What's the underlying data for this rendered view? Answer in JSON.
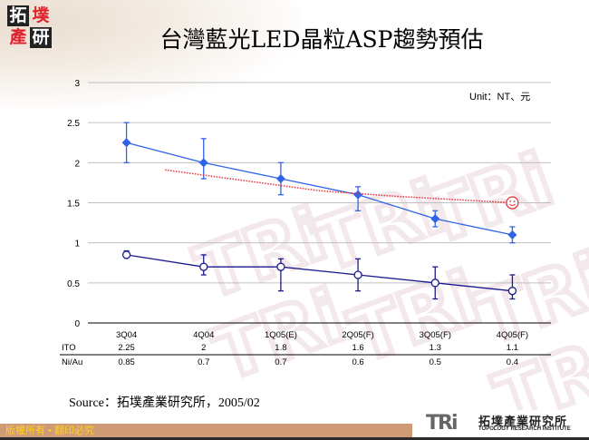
{
  "header": {
    "logo_chars": [
      "拓",
      "墣",
      "產",
      "研"
    ],
    "title": "台灣藍光LED晶粒ASP趨勢預估"
  },
  "chart_data": {
    "type": "line",
    "title": "台灣藍光LED晶粒ASP趨勢預估",
    "unit_label": "Unit：NT、元",
    "xlabel": "",
    "ylabel": "",
    "ylim": [
      0,
      3
    ],
    "yticks": [
      "0",
      "0.5",
      "1",
      "1.5",
      "2",
      "2.5",
      "3"
    ],
    "grid": true,
    "categories": [
      "3Q04",
      "4Q04",
      "1Q05(E)",
      "2Q05(F)",
      "3Q05(F)",
      "4Q05(F)"
    ],
    "series": [
      {
        "name": "ITO",
        "values": [
          2.25,
          2,
          1.8,
          1.6,
          1.3,
          1.1
        ],
        "error_low": [
          2.0,
          1.8,
          1.6,
          1.4,
          1.2,
          1.0
        ],
        "error_high": [
          2.5,
          2.3,
          2.0,
          1.7,
          1.4,
          1.2
        ],
        "color": "#2f63e8",
        "marker": "diamond"
      },
      {
        "name": "Ni/Au",
        "values": [
          0.85,
          0.7,
          0.7,
          0.6,
          0.5,
          0.4
        ],
        "error_low": [
          0.82,
          0.6,
          0.4,
          0.4,
          0.3,
          0.3
        ],
        "error_high": [
          0.9,
          0.85,
          0.8,
          0.8,
          0.7,
          0.6
        ],
        "color": "#1a1a8c",
        "marker": "hollow-circle"
      },
      {
        "name": "trend-annotation",
        "style": "dotted",
        "color": "#e8303a",
        "x_start_category": "1Q05(E)",
        "points": [
          [
            0.5,
            1.91
          ],
          [
            2.5,
            1.65
          ],
          [
            3.5,
            1.58
          ],
          [
            5,
            1.5
          ]
        ],
        "end_marker": "smiley-face"
      }
    ],
    "data_table": {
      "header": [
        "",
        "3Q04",
        "4Q04",
        "1Q05(E)",
        "2Q05(F)",
        "3Q05(F)",
        "4Q05(F)"
      ],
      "rows": [
        {
          "label": "ITO",
          "values": [
            "2.25",
            "2",
            "1.8",
            "1.6",
            "1.3",
            "1.1"
          ]
        },
        {
          "label": "Ni/Au",
          "values": [
            "0.85",
            "0.7",
            "0.7",
            "0.6",
            "0.5",
            "0.4"
          ]
        }
      ]
    }
  },
  "source": "Source：拓墣產業研究所，2005/02",
  "footer": {
    "copyright": "版權所有 • 翻印必究",
    "brand_mark": "TRi",
    "brand_cn": "拓墣產業研究所",
    "brand_en": "TOPOLOGY RESEARCH INSTITUTE"
  },
  "colors": {
    "ito_line": "#2f63e8",
    "niau_line": "#1a1a8c",
    "trend": "#e8303a",
    "footer_band": "#cf9a76",
    "footer_text": "#ffd21a",
    "grid": "#c0c0c0"
  }
}
